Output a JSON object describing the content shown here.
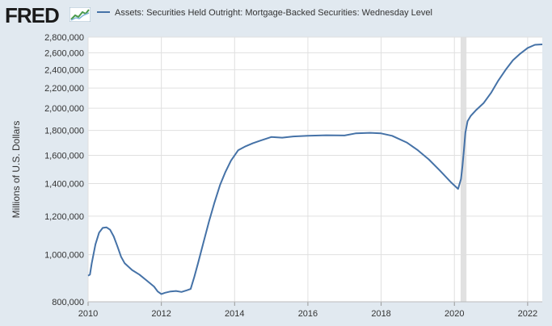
{
  "header": {
    "logo_text": "FRED",
    "logo_icon": "trend-chart-icon",
    "legend_label": "Assets: Securities Held Outright: Mortgage-Backed Securities: Wednesday Level"
  },
  "colors": {
    "series": "#4572a7",
    "plot_background": "#ffffff",
    "page_background": "#e1e9f0",
    "recession": "#e1e1e1",
    "grid": "#e0e0e0"
  },
  "chart_data": {
    "type": "line",
    "title": "",
    "xlabel": "",
    "ylabel": "Millions of U.S. Dollars",
    "y_scale": "log",
    "ylim": [
      800000,
      2800000
    ],
    "xlim": [
      2010.0,
      2022.4
    ],
    "grid": true,
    "legend": "top-left",
    "y_ticks": [
      800000,
      1000000,
      1200000,
      1400000,
      1600000,
      1800000,
      2000000,
      2200000,
      2400000,
      2600000,
      2800000
    ],
    "y_tick_labels": [
      "800,000",
      "1,000,000",
      "1,200,000",
      "1,400,000",
      "1,600,000",
      "1,800,000",
      "2,000,000",
      "2,200,000",
      "2,400,000",
      "2,600,000",
      "2,800,000"
    ],
    "x_ticks": [
      2010,
      2012,
      2014,
      2016,
      2018,
      2020,
      2022
    ],
    "x_tick_labels": [
      "2010",
      "2012",
      "2014",
      "2016",
      "2018",
      "2020",
      "2022"
    ],
    "recessions": [
      {
        "start": 2020.17,
        "end": 2020.33
      }
    ],
    "series": [
      {
        "name": "Assets: Securities Held Outright: Mortgage-Backed Securities: Wednesday Level",
        "x": [
          2010.0,
          2010.05,
          2010.1,
          2010.2,
          2010.3,
          2010.4,
          2010.5,
          2010.6,
          2010.7,
          2010.8,
          2010.9,
          2011.0,
          2011.2,
          2011.4,
          2011.6,
          2011.8,
          2011.9,
          2012.0,
          2012.1,
          2012.25,
          2012.4,
          2012.55,
          2012.7,
          2012.8,
          2012.9,
          2013.0,
          2013.15,
          2013.3,
          2013.45,
          2013.6,
          2013.75,
          2013.9,
          2014.1,
          2014.3,
          2014.5,
          2014.7,
          2014.9,
          2015.0,
          2015.3,
          2015.6,
          2016.0,
          2016.5,
          2017.0,
          2017.3,
          2017.7,
          2018.0,
          2018.3,
          2018.7,
          2019.0,
          2019.3,
          2019.6,
          2019.9,
          2020.1,
          2020.18,
          2020.22,
          2020.26,
          2020.3,
          2020.36,
          2020.45,
          2020.6,
          2020.8,
          2021.0,
          2021.2,
          2021.4,
          2021.6,
          2021.8,
          2022.0,
          2022.2,
          2022.4
        ],
        "values": [
          905000,
          910000,
          960000,
          1050000,
          1110000,
          1135000,
          1138000,
          1125000,
          1090000,
          1040000,
          990000,
          960000,
          930000,
          910000,
          885000,
          860000,
          840000,
          830000,
          835000,
          840000,
          842000,
          838000,
          845000,
          850000,
          900000,
          960000,
          1060000,
          1170000,
          1280000,
          1390000,
          1480000,
          1560000,
          1640000,
          1670000,
          1695000,
          1715000,
          1735000,
          1745000,
          1740000,
          1750000,
          1755000,
          1760000,
          1758000,
          1775000,
          1780000,
          1775000,
          1755000,
          1700000,
          1640000,
          1570000,
          1490000,
          1410000,
          1365000,
          1430000,
          1520000,
          1640000,
          1780000,
          1880000,
          1930000,
          1985000,
          2050000,
          2150000,
          2280000,
          2400000,
          2510000,
          2590000,
          2660000,
          2700000,
          2705000
        ]
      }
    ]
  }
}
